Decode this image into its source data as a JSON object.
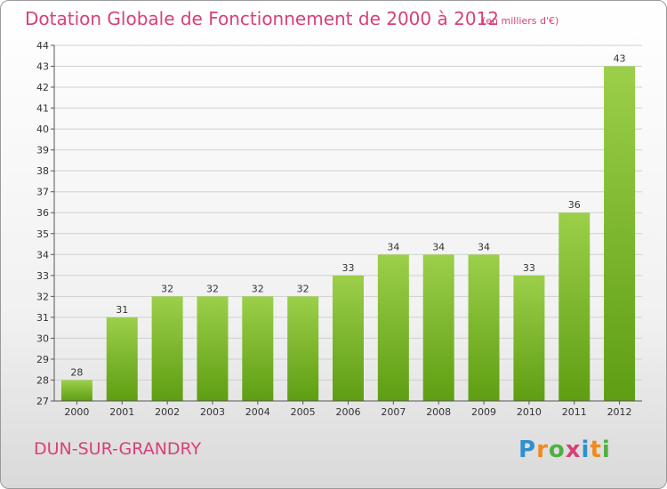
{
  "header": {
    "title": "Dotation Globale de Fonctionnement de 2000 à 2012",
    "subtitle": "(en milliers d'€)"
  },
  "footer": {
    "commune": "DUN-SUR-GRANDRY",
    "logo_text": "Proxiti",
    "logo_letters": [
      {
        "char": "P",
        "color": "#2f8fd0"
      },
      {
        "char": "r",
        "color": "#f08a1c"
      },
      {
        "char": "o",
        "color": "#4fb040"
      },
      {
        "char": "x",
        "color": "#d8407a"
      },
      {
        "char": "i",
        "color": "#2f8fd0"
      },
      {
        "char": "t",
        "color": "#f08a1c"
      },
      {
        "char": "i",
        "color": "#4fb040"
      }
    ]
  },
  "colors": {
    "accent": "#d8407a",
    "bar_top": "#9ccf4a",
    "bar_bottom": "#5e9e12",
    "grid": "#d0d0d0"
  },
  "chart_data": {
    "type": "bar",
    "title": "Dotation Globale de Fonctionnement de 2000 à 2012",
    "subtitle": "(en milliers d'€)",
    "categories": [
      "2000",
      "2001",
      "2002",
      "2003",
      "2004",
      "2005",
      "2006",
      "2007",
      "2008",
      "2009",
      "2010",
      "2011",
      "2012"
    ],
    "values": [
      28,
      31,
      32,
      32,
      32,
      32,
      33,
      34,
      34,
      34,
      33,
      36,
      43
    ],
    "ylim": [
      27,
      44
    ],
    "yticks": [
      27,
      28,
      29,
      30,
      31,
      32,
      33,
      34,
      35,
      36,
      37,
      38,
      39,
      40,
      41,
      42,
      43,
      44
    ],
    "xlabel": "",
    "ylabel": "",
    "grid": true,
    "data_labels": true
  }
}
